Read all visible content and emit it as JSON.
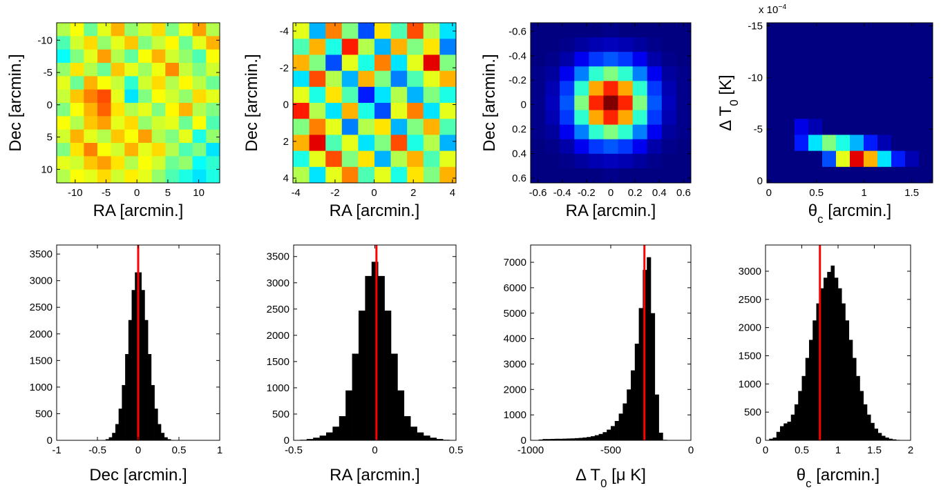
{
  "chart_data": [
    {
      "type": "heatmap",
      "colormap": "jet",
      "xlabel": "RA [arcmin.]",
      "ylabel": "Dec [arcmin.]",
      "xlim": [
        -13,
        13.4
      ],
      "ylim": [
        12.1,
        -12.7
      ],
      "xticks": [
        -10,
        -5,
        0,
        5,
        10
      ],
      "yticks": [
        -10,
        -5,
        0,
        5,
        10
      ],
      "z": [
        [
          0.55,
          0.62,
          0.48,
          0.6,
          0.7,
          0.52,
          0.58,
          0.66,
          0.5,
          0.61,
          0.72,
          0.55
        ],
        [
          0.45,
          0.58,
          0.66,
          0.52,
          0.6,
          0.68,
          0.5,
          0.57,
          0.63,
          0.48,
          0.6,
          0.7
        ],
        [
          0.38,
          0.5,
          0.6,
          0.72,
          0.55,
          0.47,
          0.62,
          0.7,
          0.58,
          0.52,
          0.45,
          0.62
        ],
        [
          0.52,
          0.65,
          0.55,
          0.48,
          0.68,
          0.6,
          0.53,
          0.61,
          0.74,
          0.57,
          0.5,
          0.58
        ],
        [
          0.6,
          0.48,
          0.7,
          0.62,
          0.57,
          0.42,
          0.58,
          0.66,
          0.55,
          0.63,
          0.56,
          0.48
        ],
        [
          0.57,
          0.68,
          0.75,
          0.8,
          0.6,
          0.35,
          0.5,
          0.62,
          0.58,
          0.52,
          0.66,
          0.6
        ],
        [
          0.5,
          0.62,
          0.7,
          0.78,
          0.65,
          0.55,
          0.6,
          0.5,
          0.63,
          0.7,
          0.55,
          0.5
        ],
        [
          0.62,
          0.55,
          0.68,
          0.72,
          0.6,
          0.66,
          0.52,
          0.58,
          0.6,
          0.48,
          0.62,
          0.45
        ],
        [
          0.58,
          0.7,
          0.6,
          0.55,
          0.68,
          0.62,
          0.72,
          0.55,
          0.5,
          0.6,
          0.4,
          0.52
        ],
        [
          0.5,
          0.65,
          0.75,
          0.62,
          0.58,
          0.7,
          0.6,
          0.66,
          0.55,
          0.45,
          0.5,
          0.35
        ],
        [
          0.6,
          0.58,
          0.68,
          0.72,
          0.65,
          0.55,
          0.62,
          0.58,
          0.48,
          0.52,
          0.38,
          0.42
        ],
        [
          0.55,
          0.62,
          0.6,
          0.66,
          0.58,
          0.64,
          0.6,
          0.52,
          0.45,
          0.4,
          0.35,
          0.4
        ]
      ]
    },
    {
      "type": "heatmap",
      "colormap": "jet",
      "xlabel": "RA [arcmin.]",
      "ylabel": "Dec [arcmin.]",
      "xlim": [
        -4.15,
        4.18
      ],
      "ylim": [
        4.26,
        -4.45
      ],
      "xticks": [
        -4,
        -2,
        0,
        2,
        4
      ],
      "yticks": [
        -4,
        -2,
        0,
        2,
        4
      ],
      "z": [
        [
          0.6,
          0.3,
          0.75,
          0.5,
          0.2,
          0.65,
          0.45,
          0.8,
          0.55,
          0.35
        ],
        [
          0.45,
          0.7,
          0.4,
          0.85,
          0.55,
          0.3,
          0.7,
          0.5,
          0.65,
          0.25
        ],
        [
          0.7,
          0.5,
          0.2,
          0.6,
          0.4,
          0.75,
          0.35,
          0.6,
          0.9,
          0.5
        ],
        [
          0.35,
          0.8,
          0.55,
          0.3,
          0.7,
          0.5,
          0.25,
          0.45,
          0.6,
          0.7
        ],
        [
          0.6,
          0.4,
          0.65,
          0.45,
          0.15,
          0.35,
          0.55,
          0.3,
          0.5,
          0.4
        ],
        [
          0.85,
          0.55,
          0.35,
          0.7,
          0.4,
          0.2,
          0.6,
          0.75,
          0.35,
          0.6
        ],
        [
          0.5,
          0.75,
          0.6,
          0.25,
          0.55,
          0.65,
          0.3,
          0.5,
          0.7,
          0.45
        ],
        [
          0.7,
          0.9,
          0.45,
          0.6,
          0.35,
          0.5,
          0.8,
          0.4,
          0.55,
          0.3
        ],
        [
          0.4,
          0.6,
          0.8,
          0.5,
          0.65,
          0.3,
          0.55,
          0.7,
          0.45,
          0.6
        ],
        [
          0.55,
          0.35,
          0.6,
          0.75,
          0.45,
          0.6,
          0.4,
          0.65,
          0.5,
          0.7
        ]
      ]
    },
    {
      "type": "heatmap",
      "colormap": "jet",
      "xlabel": "RA [arcmin.]",
      "ylabel": "Dec [arcmin.]",
      "xlim": [
        -0.66,
        0.66
      ],
      "ylim": [
        0.64,
        -0.67
      ],
      "xticks": [
        -0.6,
        -0.4,
        -0.2,
        0,
        0.2,
        0.4,
        0.6
      ],
      "yticks": [
        -0.6,
        -0.4,
        -0.2,
        0,
        0.2,
        0.4,
        0.6
      ],
      "z": [
        [
          0,
          0,
          0,
          0,
          0,
          0.01,
          0,
          0,
          0,
          0,
          0
        ],
        [
          0,
          0,
          0.01,
          0.03,
          0.05,
          0.06,
          0.05,
          0.03,
          0.01,
          0,
          0
        ],
        [
          0,
          0.01,
          0.04,
          0.11,
          0.18,
          0.21,
          0.18,
          0.11,
          0.04,
          0.01,
          0
        ],
        [
          0.01,
          0.03,
          0.11,
          0.25,
          0.42,
          0.5,
          0.42,
          0.25,
          0.11,
          0.03,
          0.01
        ],
        [
          0.01,
          0.05,
          0.18,
          0.42,
          0.71,
          0.84,
          0.71,
          0.42,
          0.18,
          0.05,
          0.01
        ],
        [
          0.01,
          0.06,
          0.21,
          0.5,
          0.84,
          1,
          0.84,
          0.5,
          0.21,
          0.06,
          0.01
        ],
        [
          0.01,
          0.05,
          0.18,
          0.42,
          0.71,
          0.84,
          0.71,
          0.42,
          0.18,
          0.05,
          0.01
        ],
        [
          0.01,
          0.03,
          0.11,
          0.25,
          0.42,
          0.5,
          0.42,
          0.25,
          0.11,
          0.03,
          0.01
        ],
        [
          0,
          0.01,
          0.04,
          0.11,
          0.18,
          0.21,
          0.18,
          0.11,
          0.04,
          0.01,
          0
        ],
        [
          0,
          0,
          0.01,
          0.03,
          0.05,
          0.06,
          0.05,
          0.03,
          0.01,
          0,
          0
        ],
        [
          0,
          0,
          0,
          0,
          0,
          0.01,
          0,
          0,
          0,
          0,
          0
        ]
      ]
    },
    {
      "type": "heatmap",
      "colormap": "jet",
      "xlabel": {
        "parts": [
          {
            "text": "θ"
          },
          {
            "text": "c",
            "sub": true
          },
          {
            "text": " [arcmin.]"
          }
        ]
      },
      "ylabel": {
        "parts": [
          {
            "text": "Δ T"
          },
          {
            "text": "0",
            "sub": true
          },
          {
            "text": " [K]"
          }
        ]
      },
      "exponent_label": {
        "parts": [
          {
            "text": "x 10"
          },
          {
            "text": "−4",
            "sup": true
          }
        ]
      },
      "xlim": [
        -0.02,
        1.72
      ],
      "ylim": [
        0.2,
        -15.3
      ],
      "xticks": [
        0,
        0.5,
        1,
        1.5
      ],
      "yticks": [
        -15,
        -10,
        -5,
        0
      ],
      "z": [
        [
          0,
          0,
          0,
          0,
          0,
          0,
          0,
          0,
          0,
          0,
          0,
          0
        ],
        [
          0,
          0,
          0,
          0,
          0,
          0,
          0,
          0,
          0,
          0,
          0,
          0
        ],
        [
          0,
          0,
          0,
          0,
          0,
          0,
          0,
          0,
          0,
          0,
          0,
          0
        ],
        [
          0,
          0,
          0,
          0,
          0,
          0,
          0,
          0,
          0,
          0,
          0,
          0
        ],
        [
          0,
          0,
          0,
          0,
          0,
          0,
          0,
          0,
          0,
          0,
          0,
          0
        ],
        [
          0,
          0,
          0,
          0,
          0,
          0,
          0,
          0,
          0,
          0,
          0,
          0
        ],
        [
          0,
          0,
          0.1,
          0.05,
          0,
          0,
          0,
          0,
          0,
          0,
          0,
          0
        ],
        [
          0,
          0,
          0.15,
          0.35,
          0.5,
          0.4,
          0.3,
          0.15,
          0.05,
          0,
          0,
          0
        ],
        [
          0,
          0,
          0,
          0,
          0.2,
          0.6,
          0.9,
          0.7,
          0.35,
          0.15,
          0.05,
          0
        ],
        [
          0,
          0,
          0,
          0,
          0,
          0,
          0,
          0,
          0,
          0,
          0,
          0
        ]
      ]
    },
    {
      "type": "histogram",
      "color": "#000000",
      "xlabel": "Dec [arcmin.]",
      "reference_line": {
        "value": 0,
        "color": "#ff0000"
      },
      "xlim": [
        -1,
        1
      ],
      "ylim": [
        0,
        3670
      ],
      "xticks": [
        -1,
        -0.5,
        0,
        0.5,
        1
      ],
      "yticks": [
        0,
        500,
        1000,
        1500,
        2000,
        2500,
        3000,
        3500
      ],
      "bins": [
        -0.6,
        -0.56,
        -0.52,
        -0.48,
        -0.44,
        -0.4,
        -0.36,
        -0.32,
        -0.28,
        -0.24,
        -0.2,
        -0.16,
        -0.12,
        -0.08,
        -0.04,
        0,
        0.04,
        0.08,
        0.12,
        0.16,
        0.2,
        0.24,
        0.28,
        0.32,
        0.36,
        0.4,
        0.44,
        0.48,
        0.52,
        0.56,
        0.6
      ],
      "values": [
        0,
        0,
        0,
        2,
        7,
        21,
        57,
        140,
        305,
        595,
        1038,
        1621,
        2260,
        2824,
        3156,
        3156,
        2824,
        2260,
        1621,
        1038,
        595,
        305,
        140,
        57,
        21,
        7,
        2,
        0,
        0,
        0
      ]
    },
    {
      "type": "histogram",
      "color": "#000000",
      "xlabel": "RA [arcmin.]",
      "reference_line": {
        "value": 0.01,
        "color": "#ff0000"
      },
      "xlim": [
        -0.5,
        0.5
      ],
      "ylim": [
        0,
        3720
      ],
      "xticks": [
        -0.5,
        0,
        0.5
      ],
      "yticks": [
        0,
        500,
        1000,
        1500,
        2000,
        2500,
        3000,
        3500
      ],
      "bins": [
        -0.5,
        -0.46,
        -0.42,
        -0.38,
        -0.34,
        -0.3,
        -0.26,
        -0.22,
        -0.18,
        -0.14,
        -0.1,
        -0.06,
        -0.02,
        0.02,
        0.06,
        0.1,
        0.14,
        0.18,
        0.22,
        0.26,
        0.3,
        0.34,
        0.38,
        0.42,
        0.46,
        0.5
      ],
      "values": [
        3,
        10,
        25,
        50,
        90,
        150,
        260,
        460,
        950,
        1650,
        2470,
        3130,
        3400,
        3130,
        2470,
        1650,
        950,
        460,
        260,
        150,
        90,
        50,
        25,
        10,
        3
      ]
    },
    {
      "type": "histogram",
      "color": "#000000",
      "xlabel": {
        "parts": [
          {
            "text": "Δ T"
          },
          {
            "text": "0",
            "sub": true
          },
          {
            "text": " [μ K]"
          }
        ]
      },
      "reference_line": {
        "value": -290,
        "color": "#ff0000"
      },
      "xlim": [
        -1000,
        0
      ],
      "ylim": [
        0,
        7680
      ],
      "xticks": [
        -1000,
        -500,
        0
      ],
      "yticks": [
        0,
        1000,
        2000,
        3000,
        4000,
        5000,
        6000,
        7000
      ],
      "bins": [
        -1000,
        -975,
        -950,
        -925,
        -900,
        -875,
        -850,
        -825,
        -800,
        -775,
        -750,
        -725,
        -700,
        -675,
        -650,
        -625,
        -600,
        -575,
        -550,
        -525,
        -500,
        -475,
        -450,
        -425,
        -400,
        -375,
        -350,
        -325,
        -300,
        -275,
        -250,
        -225,
        -200,
        -175,
        -150,
        -125,
        -100,
        -75,
        -50,
        -25,
        0
      ],
      "values": [
        0,
        0,
        30,
        50,
        50,
        55,
        60,
        60,
        65,
        70,
        75,
        85,
        95,
        110,
        130,
        160,
        200,
        250,
        320,
        420,
        560,
        760,
        1050,
        1450,
        2000,
        2750,
        3800,
        5200,
        6700,
        7200,
        5000,
        1800,
        300,
        20,
        0,
        0,
        0,
        0,
        0,
        0
      ]
    },
    {
      "type": "histogram",
      "color": "#000000",
      "xlabel": {
        "parts": [
          {
            "text": "θ"
          },
          {
            "text": "c",
            "sub": true
          },
          {
            "text": " [arcmin.]"
          }
        ]
      },
      "reference_line": {
        "value": 0.75,
        "color": "#ff0000"
      },
      "xlim": [
        0,
        2
      ],
      "ylim": [
        0,
        3465
      ],
      "xticks": [
        0,
        0.5,
        1,
        1.5,
        2
      ],
      "yticks": [
        0,
        500,
        1000,
        1500,
        2000,
        2500,
        3000
      ],
      "bins": [
        0,
        0.05,
        0.1,
        0.15,
        0.2,
        0.25,
        0.3,
        0.35,
        0.4,
        0.45,
        0.5,
        0.55,
        0.6,
        0.65,
        0.7,
        0.75,
        0.8,
        0.85,
        0.9,
        0.95,
        1,
        1.05,
        1.1,
        1.15,
        1.2,
        1.25,
        1.3,
        1.35,
        1.4,
        1.45,
        1.5,
        1.55,
        1.6,
        1.65,
        1.7,
        1.75,
        1.8,
        1.85,
        1.9,
        1.95,
        2
      ],
      "values": [
        0,
        28,
        49,
        150,
        250,
        300,
        330,
        456,
        638,
        875,
        1141,
        1462,
        1782,
        2127,
        2429,
        2697,
        2885,
        2988,
        3100,
        2885,
        2697,
        2429,
        2127,
        1782,
        1462,
        1141,
        875,
        638,
        456,
        309,
        207,
        131,
        80,
        49,
        28,
        16,
        8,
        4,
        2,
        0
      ]
    }
  ]
}
